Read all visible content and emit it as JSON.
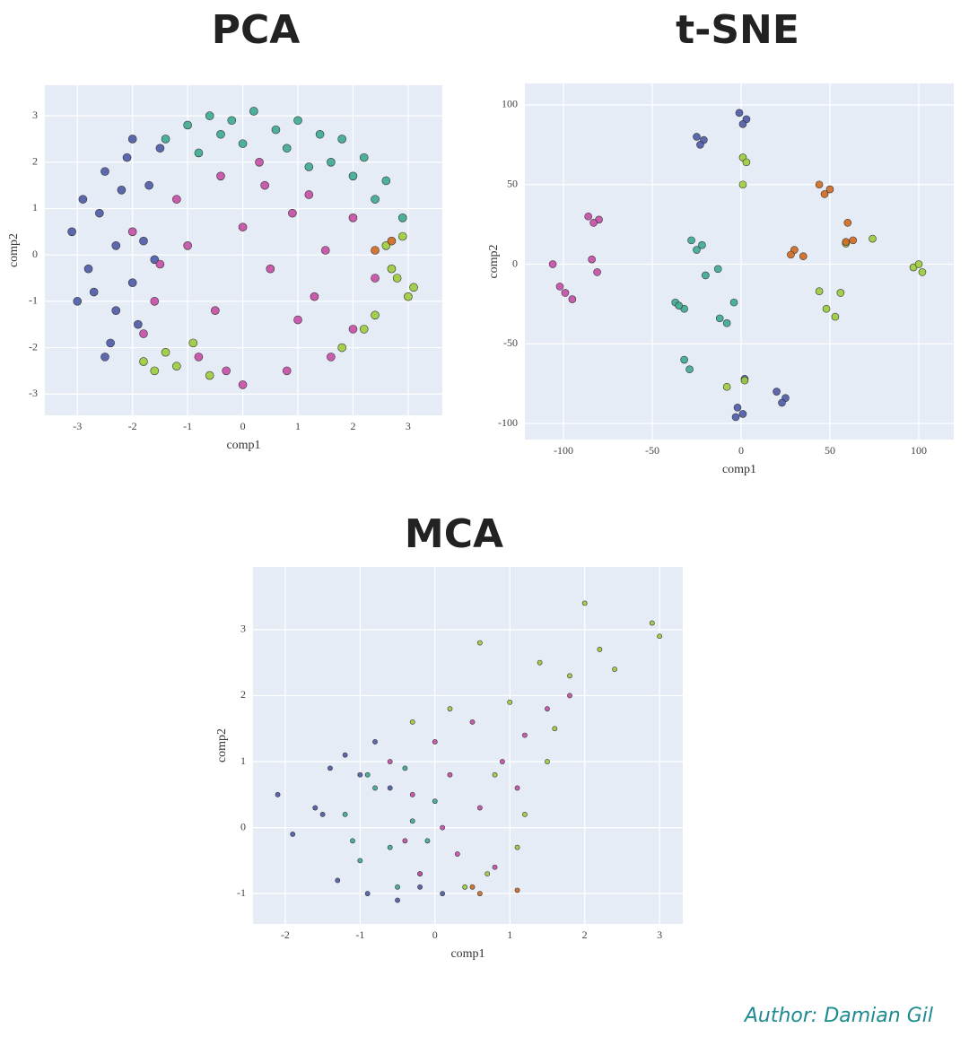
{
  "chart_data": [
    {
      "type": "scatter",
      "title": "PCA",
      "xlabel": "comp1",
      "ylabel": "comp2",
      "xlim": [
        -3.59,
        3.62
      ],
      "ylim": [
        -3.46,
        3.66
      ],
      "xticks": [
        -3,
        -2,
        -1,
        0,
        1,
        2,
        3
      ],
      "yticks": [
        -3,
        -2,
        -1,
        0,
        1,
        2,
        3
      ],
      "grid": true,
      "series": [
        {
          "color": "#4b5aa6",
          "x": [
            -3.1,
            -2.9,
            -2.7,
            -2.5,
            -2.3,
            -2.1,
            -1.9,
            -1.7,
            -1.5,
            -2.8,
            -2.6,
            -2.4,
            -2.2,
            -2,
            -1.8,
            -3,
            -2.5,
            -2,
            -1.6,
            -2.3
          ],
          "y": [
            0.5,
            1.2,
            -0.8,
            1.8,
            0.2,
            2.1,
            -1.5,
            1.5,
            2.3,
            -0.3,
            0.9,
            -1.9,
            1.4,
            -0.6,
            0.3,
            -1,
            -2.2,
            2.5,
            -0.1,
            -1.2
          ]
        },
        {
          "color": "#3bab8e",
          "x": [
            -1.4,
            -1,
            -0.6,
            -0.2,
            0.2,
            0.6,
            1,
            1.4,
            1.8,
            2.2,
            2.6,
            2.9,
            -0.8,
            0,
            0.8,
            1.6,
            2.4,
            -0.4,
            1.2,
            2
          ],
          "y": [
            2.5,
            2.8,
            3.0,
            2.9,
            3.1,
            2.7,
            2.9,
            2.6,
            2.5,
            2.1,
            1.6,
            0.8,
            2.2,
            2.4,
            2.3,
            2.0,
            1.2,
            2.6,
            1.9,
            1.7
          ]
        },
        {
          "color": "#9ccc3a",
          "x": [
            2.6,
            2.8,
            3.0,
            3.1,
            2.9,
            2.7,
            -1.8,
            -1.6,
            -1.4,
            -1.2,
            -0.9,
            2.4,
            2.2,
            -0.6,
            1.8
          ],
          "y": [
            0.2,
            -0.5,
            -0.9,
            -0.7,
            0.4,
            -0.3,
            -2.3,
            -2.5,
            -2.1,
            -2.4,
            -1.9,
            -1.3,
            -1.6,
            -2.6,
            -2.0
          ]
        },
        {
          "color": "#d2691e",
          "x": [
            2.4,
            2.7
          ],
          "y": [
            0.1,
            0.3
          ]
        },
        {
          "color": "#c64ca6",
          "x": [
            -2,
            -1.6,
            -1.2,
            -0.8,
            -0.4,
            0,
            0.4,
            0.8,
            1.2,
            1.6,
            2,
            2.4,
            -1.5,
            -1,
            -0.5,
            0,
            0.5,
            1,
            1.5,
            2,
            -0.3,
            0.3,
            0.9,
            -1.8,
            1.3
          ],
          "y": [
            0.5,
            -1,
            1.2,
            -2.2,
            1.7,
            -2.8,
            1.5,
            -2.5,
            1.3,
            -2.2,
            0.8,
            -0.5,
            -0.2,
            0.2,
            -1.2,
            0.6,
            -0.3,
            -1.4,
            0.1,
            -1.6,
            -2.5,
            2,
            0.9,
            -1.7,
            -0.9
          ]
        }
      ]
    },
    {
      "type": "scatter",
      "title": "t-SNE",
      "xlabel": "comp1",
      "ylabel": "comp2",
      "xlim": [
        -121.7,
        119.7
      ],
      "ylim": [
        -110.1,
        113.5
      ],
      "xticks": [
        -100,
        -50,
        0,
        50,
        100
      ],
      "yticks": [
        -100,
        -50,
        0,
        50,
        100
      ],
      "grid": true,
      "series": [
        {
          "color": "#4b5aa6",
          "x": [
            -1,
            3,
            1,
            -25,
            -21,
            -23,
            20,
            25,
            23,
            -2,
            1,
            -3,
            2
          ],
          "y": [
            95,
            91,
            88,
            80,
            78,
            75,
            -80,
            -84,
            -87,
            -90,
            -94,
            -96,
            -72
          ]
        },
        {
          "color": "#3bab8e",
          "x": [
            -28,
            -22,
            -25,
            -37,
            -32,
            -35,
            -12,
            -8,
            -13,
            -32,
            -29,
            -4,
            -20
          ],
          "y": [
            15,
            12,
            9,
            -24,
            -28,
            -26,
            -34,
            -37,
            -3,
            -60,
            -66,
            -24,
            -7
          ]
        },
        {
          "color": "#9ccc3a",
          "x": [
            1,
            3,
            1,
            97,
            102,
            100,
            48,
            53,
            56,
            44,
            59,
            74,
            2,
            -8
          ],
          "y": [
            67,
            64,
            50,
            -2,
            -5,
            0,
            -28,
            -33,
            -18,
            -17,
            13,
            16,
            -73,
            -77
          ]
        },
        {
          "color": "#c64ca6",
          "x": [
            -86,
            -80,
            -83,
            -106,
            -102,
            -99,
            -95,
            -81,
            -84
          ],
          "y": [
            30,
            28,
            26,
            0,
            -14,
            -18,
            -22,
            -5,
            3
          ]
        },
        {
          "color": "#d2691e",
          "x": [
            44,
            50,
            47,
            30,
            35,
            28,
            59,
            63,
            60
          ],
          "y": [
            50,
            47,
            44,
            9,
            5,
            6,
            14,
            15,
            26
          ]
        }
      ]
    },
    {
      "type": "scatter",
      "title": "MCA",
      "xlabel": "comp1",
      "ylabel": "comp2",
      "xlim": [
        -2.43,
        3.31
      ],
      "ylim": [
        -1.46,
        3.95
      ],
      "xticks": [
        -2,
        -1,
        0,
        1,
        2,
        3
      ],
      "yticks": [
        -1,
        0,
        1,
        2,
        3
      ],
      "grid": true,
      "series": [
        {
          "color": "#4b5aa6",
          "x": [
            -2.1,
            -1.9,
            -1.6,
            -1.4,
            -1.2,
            -1,
            -0.8,
            -1.3,
            -0.9,
            -0.5,
            -0.2,
            0.1,
            -1.5,
            -0.6
          ],
          "y": [
            0.5,
            -0.1,
            0.3,
            0.9,
            1.1,
            0.8,
            1.3,
            -0.8,
            -1.0,
            -1.1,
            -0.9,
            -1.0,
            0.2,
            0.6
          ]
        },
        {
          "color": "#3bab8e",
          "x": [
            -1.2,
            -1,
            -0.8,
            -0.6,
            -0.4,
            -0.2,
            0,
            -0.9,
            -0.5,
            -0.1,
            -1.1,
            -0.3
          ],
          "y": [
            0.2,
            -0.5,
            0.6,
            -0.3,
            0.9,
            -0.7,
            0.4,
            0.8,
            -0.9,
            -0.2,
            -0.2,
            0.1
          ]
        },
        {
          "color": "#9ccc3a",
          "x": [
            -0.3,
            0.2,
            0.6,
            1,
            1.4,
            1.8,
            2.2,
            2.9,
            3.0,
            0.7,
            1.2,
            1.6,
            2,
            2.4,
            0.4,
            1.1,
            0.8,
            1.5
          ],
          "y": [
            1.6,
            1.8,
            2.8,
            1.9,
            2.5,
            2.3,
            2.7,
            3.1,
            2.9,
            -0.7,
            0.2,
            1.5,
            3.4,
            2.4,
            -0.9,
            -0.3,
            0.8,
            1.0
          ]
        },
        {
          "color": "#c64ca6",
          "x": [
            -0.6,
            -0.3,
            0,
            0.3,
            0.6,
            0.9,
            1.2,
            1.5,
            1.8,
            -0.4,
            0.2,
            0.5,
            0.8,
            1.1,
            0.1,
            -0.2
          ],
          "y": [
            1,
            0.5,
            1.3,
            -0.4,
            0.3,
            1.0,
            1.4,
            1.8,
            2.0,
            -0.2,
            0.8,
            1.6,
            -0.6,
            0.6,
            0,
            -0.7
          ]
        },
        {
          "color": "#d2691e",
          "x": [
            0.5,
            0.6,
            1.1
          ],
          "y": [
            -0.9,
            -1.0,
            -0.95
          ]
        }
      ]
    }
  ],
  "author": "Author: Damian Gil"
}
